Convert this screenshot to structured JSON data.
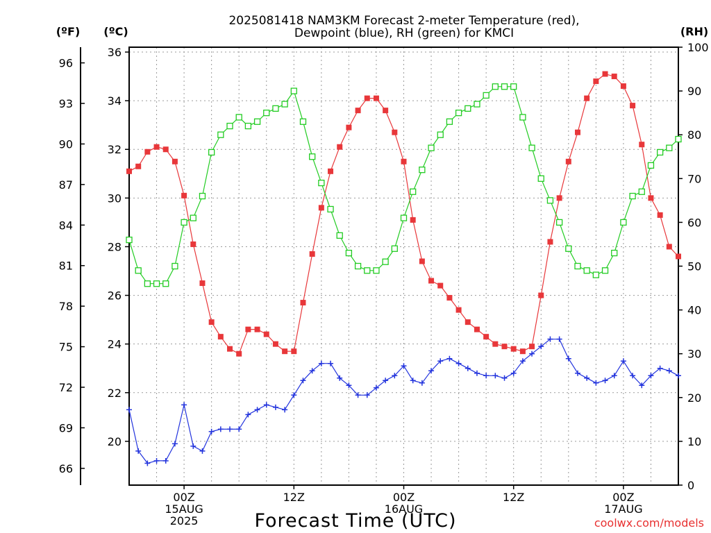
{
  "chart_data": {
    "type": "line",
    "title_line1": "2025081418 NAM3KM Forecast 2-meter Temperature (red),",
    "title_line2": "Dewpoint (blue), RH (green) for KMCI",
    "xlabel": "Forecast Time (UTC)",
    "credit": "coolwx.com/models",
    "unit_labels": {
      "fahrenheit": "(ºF)",
      "celsius": "(ºC)",
      "rh": "(RH)"
    },
    "x_hours": [
      0,
      1,
      2,
      3,
      4,
      5,
      6,
      7,
      8,
      9,
      10,
      11,
      12,
      13,
      14,
      15,
      16,
      17,
      18,
      19,
      20,
      21,
      22,
      23,
      24,
      25,
      26,
      27,
      28,
      29,
      30,
      31,
      32,
      33,
      34,
      35,
      36,
      37,
      38,
      39,
      40,
      41,
      42,
      43,
      44,
      45,
      46,
      47,
      48,
      49,
      50,
      51,
      52,
      53,
      54,
      55,
      56,
      57,
      58,
      59,
      60
    ],
    "xlim": [
      0,
      60
    ],
    "x_ticks": [
      {
        "hour": 6,
        "lines": [
          "00Z",
          "15AUG",
          "2025"
        ]
      },
      {
        "hour": 18,
        "lines": [
          "12Z"
        ]
      },
      {
        "hour": 30,
        "lines": [
          "00Z",
          "16AUG"
        ]
      },
      {
        "hour": 42,
        "lines": [
          "12Z"
        ]
      },
      {
        "hour": 54,
        "lines": [
          "00Z",
          "17AUG"
        ]
      }
    ],
    "ylim_celsius": [
      18.2,
      36.2
    ],
    "celsius_ticks": [
      20,
      22,
      24,
      26,
      28,
      30,
      32,
      34,
      36
    ],
    "fahrenheit_ticks": [
      66,
      69,
      72,
      75,
      78,
      81,
      84,
      87,
      90,
      93,
      96
    ],
    "ylim_rh": [
      0,
      100
    ],
    "rh_ticks": [
      0,
      10,
      20,
      30,
      40,
      50,
      60,
      70,
      80,
      90,
      100
    ],
    "grid": true,
    "colors": {
      "temperature": "#e8373a",
      "dewpoint": "#2233dd",
      "rh": "#22cc22",
      "credit": "#e83030"
    },
    "series": [
      {
        "name": "Temperature",
        "axis": "celsius",
        "marker": "filled-square",
        "values": [
          31.1,
          31.3,
          31.9,
          32.1,
          32.0,
          31.5,
          30.1,
          28.1,
          26.5,
          24.9,
          24.3,
          23.8,
          23.6,
          24.6,
          24.6,
          24.4,
          24.0,
          23.7,
          23.7,
          25.7,
          27.7,
          29.6,
          31.1,
          32.1,
          32.9,
          33.6,
          34.1,
          34.1,
          33.6,
          32.7,
          31.5,
          29.1,
          27.4,
          26.6,
          26.4,
          25.9,
          25.4,
          24.9,
          24.6,
          24.3,
          24.0,
          23.9,
          23.8,
          23.7,
          23.9,
          26.0,
          28.2,
          30.0,
          31.5,
          32.7,
          34.1,
          34.8,
          35.1,
          35.0,
          34.6,
          33.8,
          32.2,
          30.0,
          29.3,
          28.0,
          27.6
        ]
      },
      {
        "name": "Dewpoint",
        "axis": "celsius",
        "marker": "plus",
        "values": [
          21.3,
          19.6,
          19.1,
          19.2,
          19.2,
          19.9,
          21.5,
          19.8,
          19.6,
          20.4,
          20.5,
          20.5,
          20.5,
          21.1,
          21.3,
          21.5,
          21.4,
          21.3,
          21.9,
          22.5,
          22.9,
          23.2,
          23.2,
          22.6,
          22.3,
          21.9,
          21.9,
          22.2,
          22.5,
          22.7,
          23.1,
          22.5,
          22.4,
          22.9,
          23.3,
          23.4,
          23.2,
          23.0,
          22.8,
          22.7,
          22.7,
          22.6,
          22.8,
          23.3,
          23.6,
          23.9,
          24.2,
          24.2,
          23.4,
          22.8,
          22.6,
          22.4,
          22.5,
          22.7,
          23.3,
          22.7,
          22.3,
          22.7,
          23.0,
          22.9,
          22.7
        ]
      },
      {
        "name": "RH",
        "axis": "rh",
        "marker": "open-square",
        "values": [
          56,
          49,
          46,
          46,
          46,
          50,
          60,
          61,
          66,
          76,
          80,
          82,
          84,
          82,
          83,
          85,
          86,
          87,
          90,
          83,
          75,
          69,
          63,
          57,
          53,
          50,
          49,
          49,
          51,
          54,
          61,
          67,
          72,
          77,
          80,
          83,
          85,
          86,
          87,
          89,
          91,
          91,
          91,
          84,
          77,
          70,
          65,
          60,
          54,
          50,
          49,
          48,
          49,
          53,
          60,
          66,
          67,
          73,
          76,
          77,
          79
        ]
      }
    ]
  }
}
